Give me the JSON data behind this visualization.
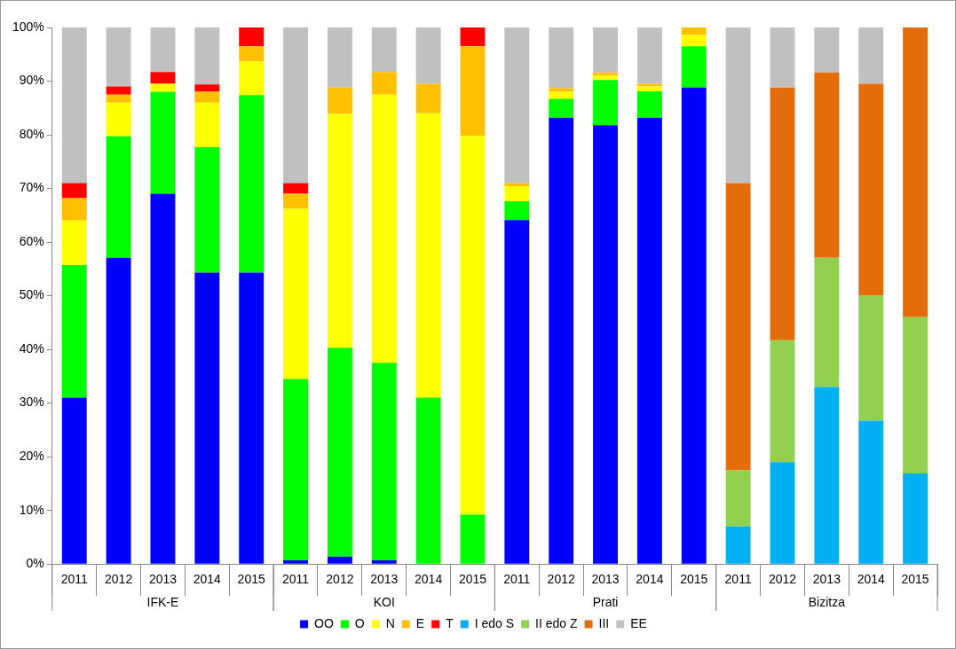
{
  "chart_data": {
    "type": "bar",
    "stacked": true,
    "categories": [
      "2011",
      "2012",
      "2013",
      "2014",
      "2015",
      "2011",
      "2012",
      "2013",
      "2014",
      "2015",
      "2011",
      "2012",
      "2013",
      "2014",
      "2015",
      "2011",
      "2012",
      "2013",
      "2014",
      "2015"
    ],
    "annotations": [
      "IFK-E",
      "KOI",
      "Prati",
      "Bizitza"
    ],
    "ylim": [
      0,
      100
    ],
    "yticks": [
      {
        "value": 0,
        "label": "0%"
      },
      {
        "value": 10,
        "label": "10%"
      },
      {
        "value": 20,
        "label": "20%"
      },
      {
        "value": 30,
        "label": "30%"
      },
      {
        "value": 40,
        "label": "40%"
      },
      {
        "value": 50,
        "label": "50%"
      },
      {
        "value": 60,
        "label": "60%"
      },
      {
        "value": 70,
        "label": "70%"
      },
      {
        "value": 80,
        "label": "80%"
      },
      {
        "value": 90,
        "label": "90%"
      },
      {
        "value": 100,
        "label": "100%"
      }
    ],
    "legend": "bottom",
    "series": [
      {
        "name": "OO",
        "color": "#0000ff",
        "values": [
          31,
          57.1,
          69,
          54.3,
          54.3,
          0.7,
          1.4,
          0.7,
          0,
          0,
          64.1,
          83.2,
          81.8,
          83.2,
          88.8,
          0,
          0,
          0,
          0,
          0
        ]
      },
      {
        "name": "O",
        "color": "#00ff00",
        "values": [
          24.7,
          22.6,
          19,
          23.4,
          33.1,
          33.8,
          38.9,
          36.8,
          31,
          9.2,
          3.5,
          3.5,
          8.4,
          4.9,
          7.7,
          0,
          0,
          0,
          0,
          0
        ]
      },
      {
        "name": "N",
        "color": "#ffff00",
        "values": [
          8.3,
          6.3,
          1.5,
          8.3,
          6.3,
          31.7,
          43.6,
          50,
          53,
          70.6,
          2.8,
          1.3,
          0.8,
          0.9,
          2.1,
          0,
          0,
          0,
          0,
          0
        ]
      },
      {
        "name": "E",
        "color": "#ffc000",
        "values": [
          4.2,
          1.5,
          0,
          2,
          2.8,
          2.8,
          4.9,
          4.2,
          5.5,
          16.7,
          0.6,
          0.7,
          0.6,
          0.5,
          1.4,
          0,
          0,
          0,
          0,
          0
        ]
      },
      {
        "name": "T",
        "color": "#ff0000",
        "values": [
          2.8,
          1.5,
          2.2,
          1.4,
          3.5,
          2,
          0,
          0,
          0,
          3.5,
          0,
          0,
          0,
          0,
          0,
          0,
          0,
          0,
          0,
          0
        ]
      },
      {
        "name": "I edo S",
        "color": "#00b0f0",
        "values": [
          0,
          0,
          0,
          0,
          0,
          0,
          0,
          0,
          0,
          0,
          0,
          0,
          0,
          0,
          0,
          7,
          19,
          33,
          26.7,
          16.9
        ]
      },
      {
        "name": "II edo Z",
        "color": "#92d050",
        "values": [
          0,
          0,
          0,
          0,
          0,
          0,
          0,
          0,
          0,
          0,
          0,
          0,
          0,
          0,
          0,
          10.5,
          22.7,
          24.1,
          23.3,
          29.1
        ]
      },
      {
        "name": "III",
        "color": "#e46c0a",
        "values": [
          0,
          0,
          0,
          0,
          0,
          0,
          0,
          0,
          0,
          0,
          0,
          0,
          0,
          0,
          0,
          53.5,
          47.1,
          34.5,
          39.5,
          54
        ]
      },
      {
        "name": "EE",
        "color": "#c0c0c0",
        "values": [
          29,
          11,
          8.3,
          10.6,
          0,
          29,
          11.2,
          8.3,
          10.5,
          0,
          29,
          11.3,
          8.4,
          10.5,
          0,
          29,
          11.2,
          8.4,
          10.5,
          0
        ]
      }
    ]
  }
}
